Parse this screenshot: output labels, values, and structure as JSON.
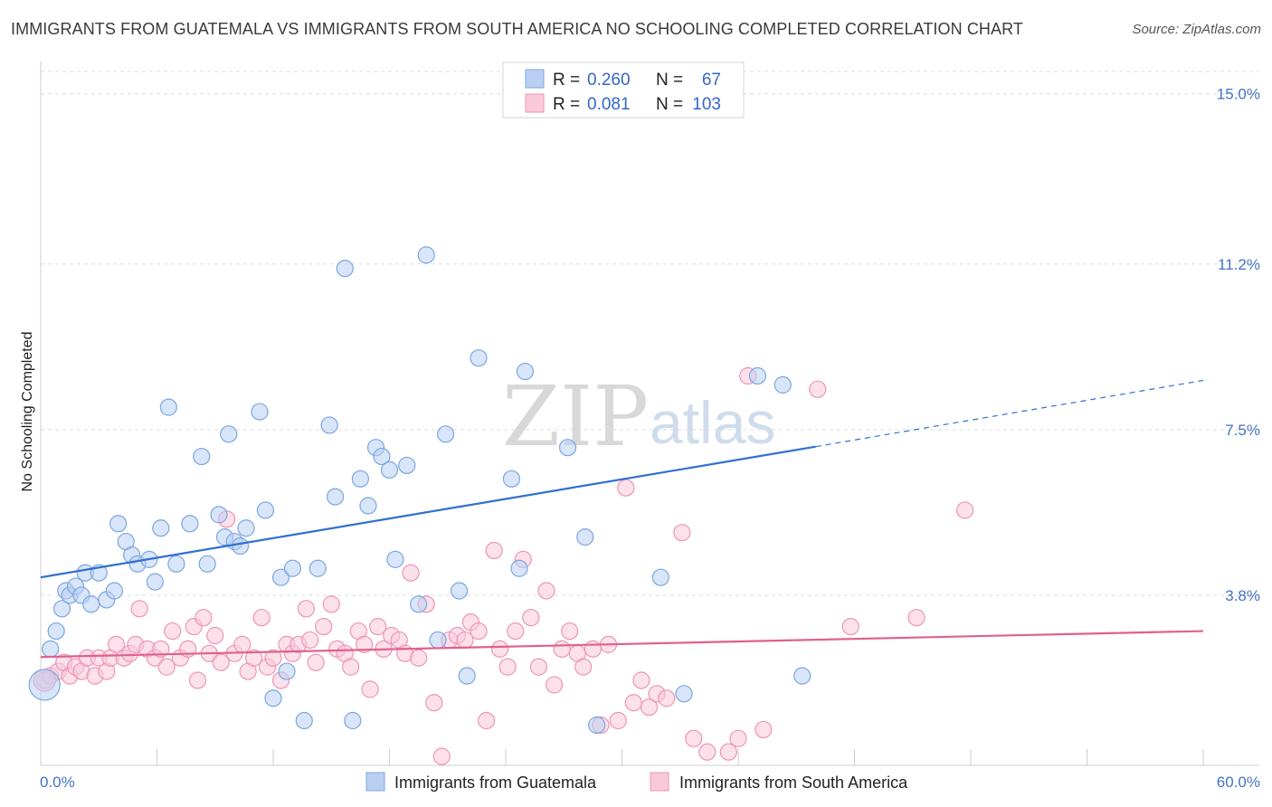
{
  "title": "IMMIGRANTS FROM GUATEMALA VS IMMIGRANTS FROM SOUTH AMERICA NO SCHOOLING COMPLETED CORRELATION CHART",
  "source": "Source: ZipAtlas.com",
  "watermark": {
    "part1": "ZIP",
    "part2": "atlas"
  },
  "legend": {
    "rows": [
      {
        "r_label": "R = ",
        "r_value": "0.260",
        "n_label": "N = ",
        "n_value": "67"
      },
      {
        "r_label": "R = ",
        "r_value": "0.081",
        "n_label": "N = ",
        "n_value": "103"
      }
    ]
  },
  "bottom_legend": [
    "Immigrants from Guatemala",
    "Immigrants from South America"
  ],
  "chart_data": {
    "type": "scatter",
    "title": "IMMIGRANTS FROM GUATEMALA VS IMMIGRANTS FROM SOUTH AMERICA NO SCHOOLING COMPLETED CORRELATION CHART",
    "xlabel": "",
    "ylabel": "No Schooling Completed",
    "xlim": [
      0,
      60
    ],
    "ylim": [
      0,
      15.5
    ],
    "x_tick_labels": [
      "0.0%",
      "60.0%"
    ],
    "y_ticks": [
      3.8,
      7.5,
      11.2,
      15.0
    ],
    "y_tick_labels": [
      "3.8%",
      "7.5%",
      "11.2%",
      "15.0%"
    ],
    "grid": "horizontal dashed",
    "legend_position": "top-center",
    "series": [
      {
        "name": "Immigrants from Guatemala",
        "color": "#7aa7e0",
        "fill": "#b9d0f2",
        "trend_color": "#2f6fd0",
        "trend": {
          "x0": 0,
          "y0": 4.2,
          "x1": 40,
          "y1": 7.12,
          "dash_to_x": 60,
          "dash_to_y": 8.6
        },
        "points": [
          [
            0.5,
            2.6
          ],
          [
            0.8,
            3.0
          ],
          [
            1.1,
            3.5
          ],
          [
            1.3,
            3.9
          ],
          [
            1.5,
            3.8
          ],
          [
            1.8,
            4.0
          ],
          [
            2.1,
            3.8
          ],
          [
            2.3,
            4.3
          ],
          [
            2.6,
            3.6
          ],
          [
            3.0,
            4.3
          ],
          [
            3.4,
            3.7
          ],
          [
            3.8,
            3.9
          ],
          [
            4.0,
            5.4
          ],
          [
            4.4,
            5.0
          ],
          [
            4.7,
            4.7
          ],
          [
            5.0,
            4.5
          ],
          [
            5.6,
            4.6
          ],
          [
            5.9,
            4.1
          ],
          [
            6.2,
            5.3
          ],
          [
            6.6,
            8.0
          ],
          [
            7.0,
            4.5
          ],
          [
            7.7,
            5.4
          ],
          [
            8.3,
            6.9
          ],
          [
            8.6,
            4.5
          ],
          [
            9.2,
            5.6
          ],
          [
            9.5,
            5.1
          ],
          [
            9.7,
            7.4
          ],
          [
            10.0,
            5.0
          ],
          [
            10.3,
            4.9
          ],
          [
            10.6,
            5.3
          ],
          [
            11.3,
            7.9
          ],
          [
            11.6,
            5.7
          ],
          [
            12.0,
            1.5
          ],
          [
            12.4,
            4.2
          ],
          [
            12.7,
            2.1
          ],
          [
            13.0,
            4.4
          ],
          [
            13.6,
            1.0
          ],
          [
            14.3,
            4.4
          ],
          [
            14.9,
            7.6
          ],
          [
            15.2,
            6.0
          ],
          [
            15.7,
            11.1
          ],
          [
            16.1,
            1.0
          ],
          [
            16.5,
            6.4
          ],
          [
            16.9,
            5.8
          ],
          [
            17.3,
            7.1
          ],
          [
            17.6,
            6.9
          ],
          [
            18.0,
            6.6
          ],
          [
            18.3,
            4.6
          ],
          [
            18.9,
            6.7
          ],
          [
            19.5,
            3.6
          ],
          [
            19.9,
            11.4
          ],
          [
            20.5,
            2.8
          ],
          [
            20.9,
            7.4
          ],
          [
            21.6,
            3.9
          ],
          [
            22.0,
            2.0
          ],
          [
            22.6,
            9.1
          ],
          [
            24.3,
            6.4
          ],
          [
            24.7,
            4.4
          ],
          [
            25.0,
            8.8
          ],
          [
            27.2,
            7.1
          ],
          [
            28.1,
            5.1
          ],
          [
            28.7,
            0.9
          ],
          [
            32.0,
            4.2
          ],
          [
            33.2,
            1.6
          ],
          [
            37.0,
            8.7
          ],
          [
            38.3,
            8.5
          ],
          [
            39.3,
            2.0
          ]
        ]
      },
      {
        "name": "Immigrants from South America",
        "color": "#ee94b4",
        "fill": "#f9c9da",
        "trend_color": "#e0608e",
        "trend": {
          "x0": 0,
          "y0": 2.42,
          "x1": 60,
          "y1": 3.0
        },
        "points": [
          [
            0.2,
            1.9
          ],
          [
            0.5,
            2.0
          ],
          [
            0.9,
            2.1
          ],
          [
            1.2,
            2.3
          ],
          [
            1.5,
            2.0
          ],
          [
            1.8,
            2.2
          ],
          [
            2.1,
            2.1
          ],
          [
            2.4,
            2.4
          ],
          [
            2.8,
            2.0
          ],
          [
            3.0,
            2.4
          ],
          [
            3.4,
            2.1
          ],
          [
            3.6,
            2.4
          ],
          [
            3.9,
            2.7
          ],
          [
            4.3,
            2.4
          ],
          [
            4.6,
            2.5
          ],
          [
            4.9,
            2.7
          ],
          [
            5.1,
            3.5
          ],
          [
            5.5,
            2.6
          ],
          [
            5.9,
            2.4
          ],
          [
            6.2,
            2.6
          ],
          [
            6.5,
            2.2
          ],
          [
            6.8,
            3.0
          ],
          [
            7.2,
            2.4
          ],
          [
            7.6,
            2.6
          ],
          [
            7.9,
            3.1
          ],
          [
            8.1,
            1.9
          ],
          [
            8.4,
            3.3
          ],
          [
            8.7,
            2.5
          ],
          [
            9.0,
            2.9
          ],
          [
            9.3,
            2.3
          ],
          [
            9.6,
            5.5
          ],
          [
            10.0,
            2.5
          ],
          [
            10.4,
            2.7
          ],
          [
            10.7,
            2.1
          ],
          [
            11.0,
            2.4
          ],
          [
            11.4,
            3.3
          ],
          [
            11.7,
            2.2
          ],
          [
            12.0,
            2.4
          ],
          [
            12.4,
            1.9
          ],
          [
            12.7,
            2.7
          ],
          [
            13.0,
            2.5
          ],
          [
            13.3,
            2.7
          ],
          [
            13.7,
            3.5
          ],
          [
            13.9,
            2.8
          ],
          [
            14.2,
            2.3
          ],
          [
            14.6,
            3.1
          ],
          [
            15.0,
            3.6
          ],
          [
            15.3,
            2.6
          ],
          [
            15.7,
            2.5
          ],
          [
            16.0,
            2.2
          ],
          [
            16.4,
            3.0
          ],
          [
            16.7,
            2.7
          ],
          [
            17.0,
            1.7
          ],
          [
            17.4,
            3.1
          ],
          [
            17.7,
            2.6
          ],
          [
            18.1,
            2.9
          ],
          [
            18.5,
            2.8
          ],
          [
            18.8,
            2.5
          ],
          [
            19.1,
            4.3
          ],
          [
            19.5,
            2.4
          ],
          [
            19.9,
            3.6
          ],
          [
            20.3,
            1.4
          ],
          [
            20.7,
            0.2
          ],
          [
            21.1,
            2.8
          ],
          [
            21.5,
            2.9
          ],
          [
            21.9,
            2.8
          ],
          [
            22.2,
            3.2
          ],
          [
            22.6,
            3.0
          ],
          [
            23.0,
            1.0
          ],
          [
            23.4,
            4.8
          ],
          [
            23.7,
            2.6
          ],
          [
            24.1,
            2.2
          ],
          [
            24.5,
            3.0
          ],
          [
            24.9,
            4.6
          ],
          [
            25.3,
            3.3
          ],
          [
            25.7,
            2.2
          ],
          [
            26.1,
            3.9
          ],
          [
            26.5,
            1.8
          ],
          [
            26.9,
            2.6
          ],
          [
            27.3,
            3.0
          ],
          [
            27.7,
            2.5
          ],
          [
            28.0,
            2.2
          ],
          [
            28.5,
            2.6
          ],
          [
            28.9,
            0.9
          ],
          [
            29.3,
            2.7
          ],
          [
            29.8,
            1.0
          ],
          [
            30.2,
            6.2
          ],
          [
            30.6,
            1.4
          ],
          [
            31.0,
            1.9
          ],
          [
            31.4,
            1.3
          ],
          [
            31.8,
            1.6
          ],
          [
            32.3,
            1.5
          ],
          [
            33.1,
            5.2
          ],
          [
            33.7,
            0.6
          ],
          [
            34.4,
            0.3
          ],
          [
            35.5,
            0.3
          ],
          [
            36.0,
            0.6
          ],
          [
            36.5,
            8.7
          ],
          [
            37.3,
            0.8
          ],
          [
            40.1,
            8.4
          ],
          [
            41.8,
            3.1
          ],
          [
            45.2,
            3.3
          ],
          [
            47.7,
            5.7
          ]
        ]
      }
    ]
  }
}
